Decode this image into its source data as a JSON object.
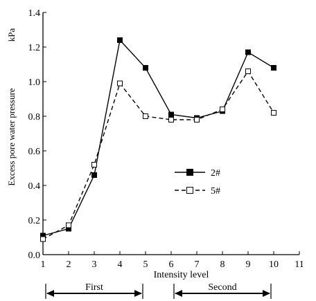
{
  "chart_data": {
    "type": "line",
    "x": [
      1,
      2,
      3,
      4,
      5,
      6,
      7,
      8,
      9,
      10
    ],
    "series": [
      {
        "name": "2#",
        "values": [
          0.11,
          0.15,
          0.46,
          1.24,
          1.08,
          0.81,
          0.79,
          0.83,
          1.17,
          1.08
        ],
        "marker": "filled-square",
        "line": "solid"
      },
      {
        "name": "5#",
        "values": [
          0.09,
          0.17,
          0.52,
          0.99,
          0.8,
          0.78,
          0.78,
          0.84,
          1.06,
          0.82
        ],
        "marker": "open-square",
        "line": "dashed"
      }
    ],
    "xlabel": "Intensity level",
    "ylabel": "Excess pore water pressure",
    "yunit": "kPa",
    "xlim": [
      1,
      11
    ],
    "ylim": [
      0.0,
      1.4
    ],
    "xticks": [
      "1",
      "2",
      "3",
      "4",
      "5",
      "6",
      "7",
      "8",
      "9",
      "10",
      "11"
    ],
    "yticks": [
      "0.0",
      "0.2",
      "0.4",
      "0.6",
      "0.8",
      "1.0",
      "1.2",
      "1.4"
    ],
    "grid": false,
    "legend_position": "center-right",
    "stages": [
      {
        "label": "First",
        "from": 1,
        "to": 5
      },
      {
        "label": "Second",
        "from": 6,
        "to": 10
      }
    ],
    "colors": {
      "line": "#000000",
      "background": "#ffffff"
    }
  }
}
